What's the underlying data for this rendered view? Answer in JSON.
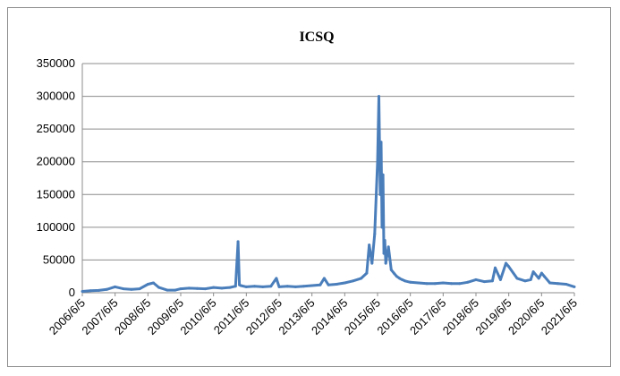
{
  "chart_data": {
    "type": "line",
    "title": "ICSQ",
    "xlabel": "",
    "ylabel": "",
    "ylim": [
      0,
      350000
    ],
    "yticks": [
      0,
      50000,
      100000,
      150000,
      200000,
      250000,
      300000,
      350000
    ],
    "ytick_labels": [
      "0",
      "50000",
      "100000",
      "150000",
      "200000",
      "250000",
      "300000",
      "350000"
    ],
    "xlim": [
      "2006-06-05",
      "2021-06-05"
    ],
    "xtick_labels": [
      "2006/6/5",
      "2007/6/5",
      "2008/6/5",
      "2009/6/5",
      "2010/6/5",
      "2011/6/5",
      "2012/6/5",
      "2013/6/5",
      "2014/6/5",
      "2015/6/5",
      "2016/6/5",
      "2017/6/5",
      "2018/6/5",
      "2019/6/5",
      "2020/6/5",
      "2021/6/5"
    ],
    "grid": true,
    "legend": "none",
    "series": [
      {
        "color": "#4a7ebb",
        "x": [
          "2006-06-05",
          "2006-09-05",
          "2006-12-05",
          "2007-03-05",
          "2007-06-05",
          "2007-09-05",
          "2007-12-05",
          "2008-03-05",
          "2008-06-05",
          "2008-08-05",
          "2008-10-05",
          "2009-01-05",
          "2009-04-05",
          "2009-06-05",
          "2009-09-05",
          "2009-12-05",
          "2010-03-05",
          "2010-06-05",
          "2010-09-05",
          "2010-12-05",
          "2011-02-05",
          "2011-03-05",
          "2011-03-20",
          "2011-04-05",
          "2011-06-05",
          "2011-09-05",
          "2011-12-05",
          "2012-03-05",
          "2012-05-05",
          "2012-06-05",
          "2012-09-05",
          "2012-12-05",
          "2013-03-05",
          "2013-06-05",
          "2013-09-05",
          "2013-10-20",
          "2013-12-05",
          "2014-03-05",
          "2014-06-05",
          "2014-09-05",
          "2014-12-05",
          "2015-02-05",
          "2015-03-05",
          "2015-04-05",
          "2015-05-05",
          "2015-06-05",
          "2015-06-20",
          "2015-07-05",
          "2015-07-15",
          "2015-07-25",
          "2015-08-05",
          "2015-08-15",
          "2015-08-25",
          "2015-09-05",
          "2015-10-05",
          "2015-11-05",
          "2015-12-05",
          "2016-01-05",
          "2016-02-05",
          "2016-03-05",
          "2016-04-05",
          "2016-06-05",
          "2016-09-05",
          "2016-12-05",
          "2017-03-05",
          "2017-06-05",
          "2017-09-05",
          "2017-12-05",
          "2018-03-05",
          "2018-06-05",
          "2018-09-05",
          "2018-12-05",
          "2019-01-05",
          "2019-03-05",
          "2019-05-05",
          "2019-06-05",
          "2019-09-05",
          "2019-12-05",
          "2020-02-05",
          "2020-03-05",
          "2020-05-05",
          "2020-06-05",
          "2020-07-05",
          "2020-09-05",
          "2020-12-05",
          "2021-03-05",
          "2021-06-05"
        ],
        "values": [
          2000,
          3000,
          3500,
          5000,
          9000,
          6000,
          5000,
          6000,
          13000,
          15000,
          8000,
          4000,
          4000,
          6000,
          7000,
          6500,
          6000,
          8000,
          7000,
          8000,
          10000,
          78000,
          12000,
          11000,
          9000,
          10000,
          9000,
          10000,
          22000,
          9000,
          10000,
          9000,
          10000,
          11000,
          12000,
          22000,
          12000,
          13000,
          15000,
          18000,
          22000,
          30000,
          73000,
          45000,
          90000,
          200000,
          300000,
          150000,
          230000,
          100000,
          180000,
          60000,
          80000,
          45000,
          70000,
          35000,
          30000,
          25000,
          22000,
          20000,
          18000,
          16000,
          15000,
          14000,
          14000,
          15000,
          14000,
          14000,
          16000,
          20000,
          17000,
          18000,
          38000,
          20000,
          45000,
          40000,
          22000,
          18000,
          20000,
          32000,
          22000,
          30000,
          25000,
          15000,
          14000,
          13000,
          9000
        ]
      }
    ]
  }
}
